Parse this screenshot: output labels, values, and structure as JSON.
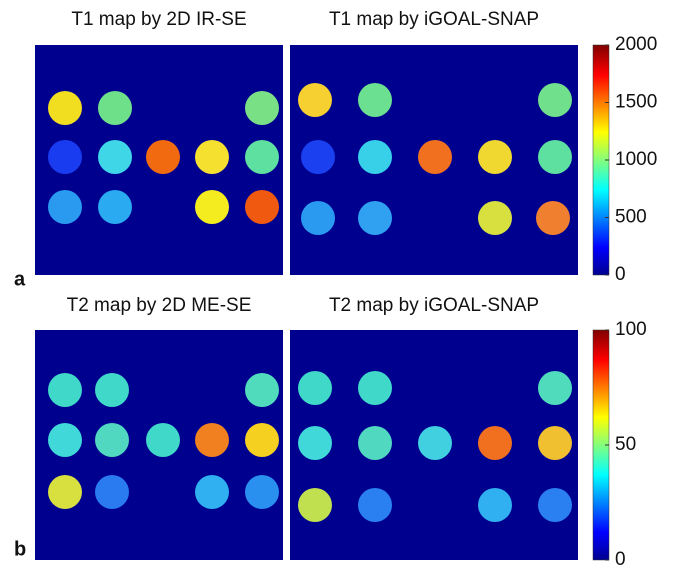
{
  "panels": [
    {
      "label": "a",
      "titles": [
        "T1 map by 2D IR-SE",
        "T1 map by iGOAL-SNAP"
      ],
      "colorbar": {
        "lim": [
          0,
          2000
        ],
        "ticks": [
          0,
          500,
          1000,
          1500,
          2000
        ]
      }
    },
    {
      "label": "b",
      "titles": [
        "T2 map by 2D ME-SE",
        "T2 map by iGOAL-SNAP"
      ],
      "colorbar": {
        "lim": [
          0,
          100
        ],
        "ticks": [
          0,
          50,
          100
        ]
      }
    }
  ]
}
